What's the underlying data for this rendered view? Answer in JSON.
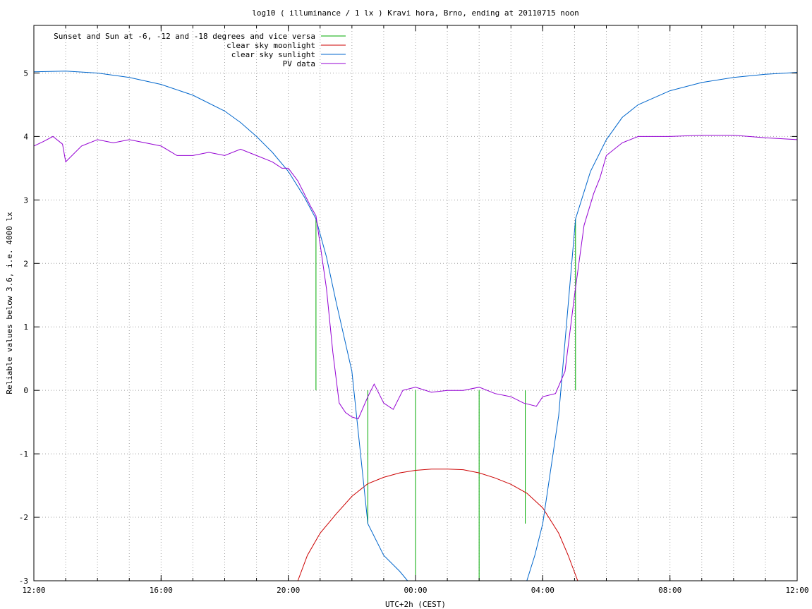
{
  "chart_data": {
    "type": "line",
    "title": "log10 ( illuminance / 1 lx ) Kravi hora, Brno, ending at 20110715 noon",
    "xlabel": "UTC+2h (CEST)",
    "ylabel": "Reliable values below 3.6, i.e. 4000 lx",
    "x_unit": "hours of day (UTC+2h), continuing past midnight",
    "xlim": [
      12,
      36
    ],
    "ylim": [
      -3,
      5.75
    ],
    "x_ticks": [
      {
        "value": 12,
        "label": "12:00"
      },
      {
        "value": 16,
        "label": "16:00"
      },
      {
        "value": 20,
        "label": "20:00"
      },
      {
        "value": 24,
        "label": "00:00"
      },
      {
        "value": 28,
        "label": "04:00"
      },
      {
        "value": 32,
        "label": "08:00"
      },
      {
        "value": 36,
        "label": "12:00"
      }
    ],
    "x_minor_step": 1,
    "y_ticks": [
      {
        "value": -3,
        "label": "-3"
      },
      {
        "value": -2,
        "label": "-2"
      },
      {
        "value": -1,
        "label": "-1"
      },
      {
        "value": 0,
        "label": "0"
      },
      {
        "value": 1,
        "label": "1"
      },
      {
        "value": 2,
        "label": "2"
      },
      {
        "value": 3,
        "label": "3"
      },
      {
        "value": 4,
        "label": "4"
      },
      {
        "value": 5,
        "label": "5"
      }
    ],
    "grid": true,
    "legend_position": "top-left",
    "series": [
      {
        "name": "Sunset and Sun at -6, -12 and -18 degrees and vice versa",
        "color": "#00aa00",
        "style": "impulses",
        "x": [
          20.87,
          22.5,
          24.0,
          26.0,
          27.45,
          29.03
        ],
        "y": [
          2.7,
          -2.1,
          -3.0,
          -3.0,
          -2.1,
          2.7
        ]
      },
      {
        "name": "clear sky moonlight",
        "color": "#cc0000",
        "style": "line",
        "x": [
          20.3,
          20.6,
          21.0,
          21.5,
          22.0,
          22.5,
          23.0,
          23.5,
          24.0,
          24.5,
          25.0,
          25.5,
          26.0,
          26.5,
          27.0,
          27.5,
          28.0,
          28.5,
          28.8,
          29.1
        ],
        "y": [
          -3.0,
          -2.6,
          -2.25,
          -1.95,
          -1.67,
          -1.47,
          -1.37,
          -1.3,
          -1.26,
          -1.24,
          -1.24,
          -1.25,
          -1.3,
          -1.38,
          -1.48,
          -1.62,
          -1.85,
          -2.25,
          -2.6,
          -3.0
        ]
      },
      {
        "name": "clear sky sunlight",
        "color": "#0066cc",
        "style": "line",
        "x": [
          12.0,
          13.0,
          14.0,
          15.0,
          16.0,
          17.0,
          18.0,
          18.5,
          19.0,
          19.5,
          20.0,
          20.5,
          20.87,
          21.2,
          21.5,
          22.0,
          22.5,
          23.0,
          23.5,
          23.75,
          27.5,
          27.75,
          28.0,
          28.5,
          29.03,
          29.5,
          30.0,
          30.5,
          31.0,
          32.0,
          33.0,
          34.0,
          35.0,
          36.0
        ],
        "y": [
          5.02,
          5.03,
          5.0,
          4.93,
          4.82,
          4.65,
          4.4,
          4.22,
          4.0,
          3.75,
          3.45,
          3.05,
          2.7,
          2.1,
          1.4,
          0.3,
          -2.1,
          -2.6,
          -2.85,
          -3.0,
          -3.0,
          -2.6,
          -2.1,
          -0.4,
          2.7,
          3.45,
          3.95,
          4.3,
          4.5,
          4.72,
          4.85,
          4.93,
          4.98,
          5.01
        ]
      },
      {
        "name": "PV data",
        "color": "#9400d3",
        "style": "line",
        "x": [
          12.0,
          12.3,
          12.6,
          12.9,
          13.0,
          13.5,
          14.0,
          14.5,
          15.0,
          15.5,
          16.0,
          16.5,
          17.0,
          17.5,
          18.0,
          18.5,
          19.0,
          19.5,
          19.8,
          20.0,
          20.3,
          20.5,
          20.7,
          20.87,
          21.0,
          21.2,
          21.4,
          21.6,
          21.8,
          22.0,
          22.2,
          22.5,
          22.7,
          23.0,
          23.3,
          23.6,
          24.0,
          24.5,
          25.0,
          25.5,
          26.0,
          26.5,
          27.0,
          27.4,
          27.8,
          28.0,
          28.4,
          28.7,
          29.0,
          29.3,
          29.6,
          29.8,
          30.0,
          30.5,
          31.0,
          32.0,
          33.0,
          34.0,
          35.0,
          36.0
        ],
        "y": [
          3.85,
          3.92,
          4.0,
          3.88,
          3.6,
          3.85,
          3.95,
          3.9,
          3.95,
          3.9,
          3.85,
          3.7,
          3.7,
          3.75,
          3.7,
          3.8,
          3.7,
          3.6,
          3.5,
          3.5,
          3.3,
          3.1,
          2.9,
          2.75,
          2.3,
          1.6,
          0.6,
          -0.2,
          -0.35,
          -0.42,
          -0.45,
          -0.1,
          0.1,
          -0.2,
          -0.3,
          0.0,
          0.05,
          -0.03,
          0.0,
          0.0,
          0.05,
          -0.05,
          -0.1,
          -0.2,
          -0.25,
          -0.1,
          -0.05,
          0.3,
          1.5,
          2.6,
          3.1,
          3.35,
          3.7,
          3.9,
          4.0,
          4.0,
          4.02,
          4.02,
          3.98,
          3.95
        ]
      }
    ]
  }
}
